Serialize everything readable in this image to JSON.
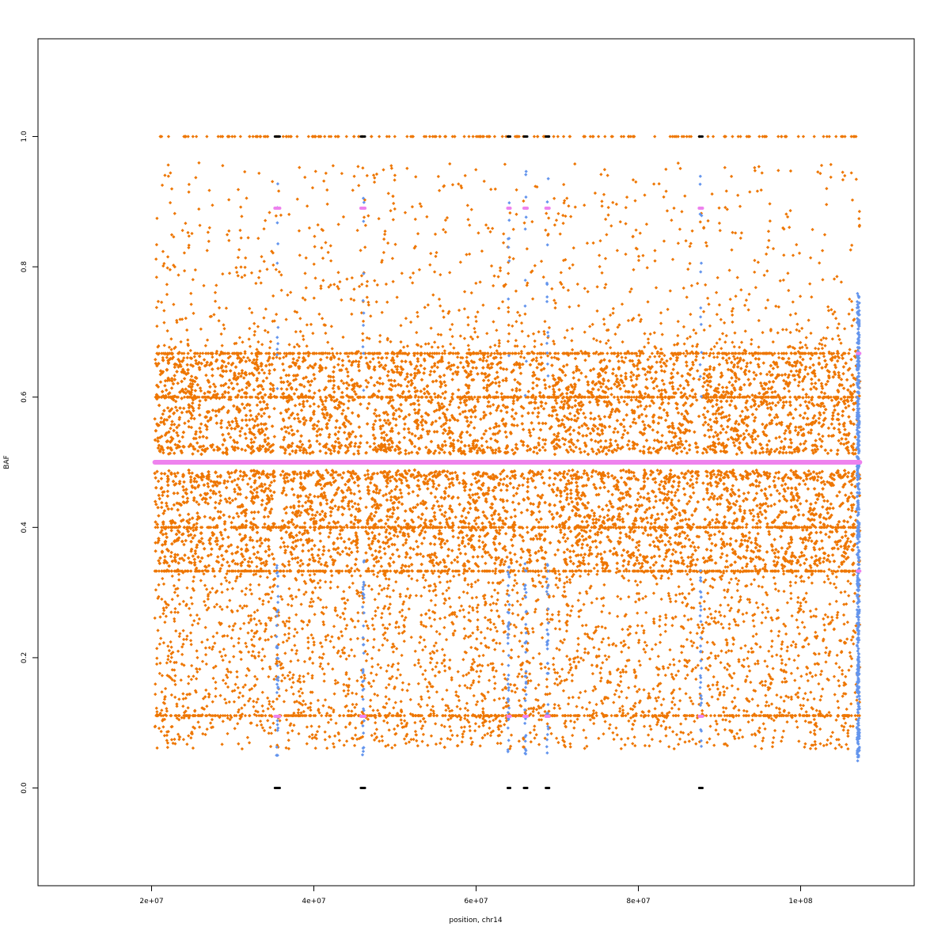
{
  "chart_data": {
    "type": "scatter",
    "title": "",
    "xlabel": "position, chr14",
    "ylabel": "BAF",
    "xlim": [
      6000000,
      114000000
    ],
    "ylim": [
      -0.15,
      1.15
    ],
    "x_ticks": [
      {
        "value": 20000000,
        "label": "2e+07"
      },
      {
        "value": 40000000,
        "label": "4e+07"
      },
      {
        "value": 60000000,
        "label": "6e+07"
      },
      {
        "value": 80000000,
        "label": "8e+07"
      },
      {
        "value": 100000000,
        "label": "1e+08"
      }
    ],
    "y_ticks": [
      {
        "value": 0.0,
        "label": "0.0"
      },
      {
        "value": 0.2,
        "label": "0.2"
      },
      {
        "value": 0.4,
        "label": "0.4"
      },
      {
        "value": 0.6,
        "label": "0.6"
      },
      {
        "value": 0.8,
        "label": "0.8"
      },
      {
        "value": 1.0,
        "label": "1.0"
      }
    ],
    "grid": false,
    "legend": "none",
    "x_range_data": [
      20400000,
      107300000
    ],
    "colors": {
      "snp": "#ee7600",
      "low_confidence": "#6495ed",
      "segment": "#ee82ee",
      "homozygous": "#000000"
    },
    "series": [
      {
        "role": "snp",
        "color": "#ee7600",
        "baf_levels": [
          0.0,
          0.111,
          0.333,
          0.4,
          0.5,
          0.6,
          0.667,
          1.0
        ],
        "dense_band": [
          0.34,
          0.66
        ],
        "sparse_band": [
          0.06,
          0.95
        ],
        "gap_regions": [
          [
            35200000,
            35800000
          ],
          [
            45800000,
            46300000
          ],
          [
            63900000,
            64200000
          ],
          [
            65900000,
            66300000
          ],
          [
            68600000,
            69000000
          ],
          [
            87500000,
            87900000
          ]
        ]
      },
      {
        "role": "low_confidence",
        "color": "#6495ed",
        "columns": [
          35500000,
          46100000,
          64000000,
          66100000,
          68800000,
          87700000,
          107100000
        ]
      },
      {
        "role": "segment",
        "color": "#ee82ee",
        "mean_line": {
          "y": 0.5,
          "x": [
            20400000,
            107300000
          ]
        },
        "segments": [
          {
            "x": [
              35200000,
              35800000
            ],
            "y": [
              0.89,
              0.11
            ]
          },
          {
            "x": [
              45800000,
              46300000
            ],
            "y": [
              0.89,
              0.11
            ]
          },
          {
            "x": [
              63900000,
              64200000
            ],
            "y": [
              0.89,
              0.11
            ]
          },
          {
            "x": [
              65900000,
              66300000
            ],
            "y": [
              0.89,
              0.11
            ]
          },
          {
            "x": [
              68600000,
              69000000
            ],
            "y": [
              0.89,
              0.11
            ]
          },
          {
            "x": [
              87500000,
              87900000
            ],
            "y": [
              0.89,
              0.11
            ]
          },
          {
            "x": [
              107000000,
              107300000
            ],
            "y": [
              0.667,
              0.333
            ]
          }
        ]
      },
      {
        "role": "homozygous",
        "color": "#000000",
        "segments": [
          {
            "x": [
              35200000,
              35800000
            ],
            "y": [
              1.0,
              0.0
            ]
          },
          {
            "x": [
              45800000,
              46300000
            ],
            "y": [
              1.0,
              0.0
            ]
          },
          {
            "x": [
              63900000,
              64200000
            ],
            "y": [
              1.0,
              0.0
            ]
          },
          {
            "x": [
              65900000,
              66300000
            ],
            "y": [
              1.0,
              0.0
            ]
          },
          {
            "x": [
              68600000,
              69000000
            ],
            "y": [
              1.0,
              0.0
            ]
          },
          {
            "x": [
              87500000,
              87900000
            ],
            "y": [
              1.0,
              0.0
            ]
          }
        ]
      }
    ]
  }
}
